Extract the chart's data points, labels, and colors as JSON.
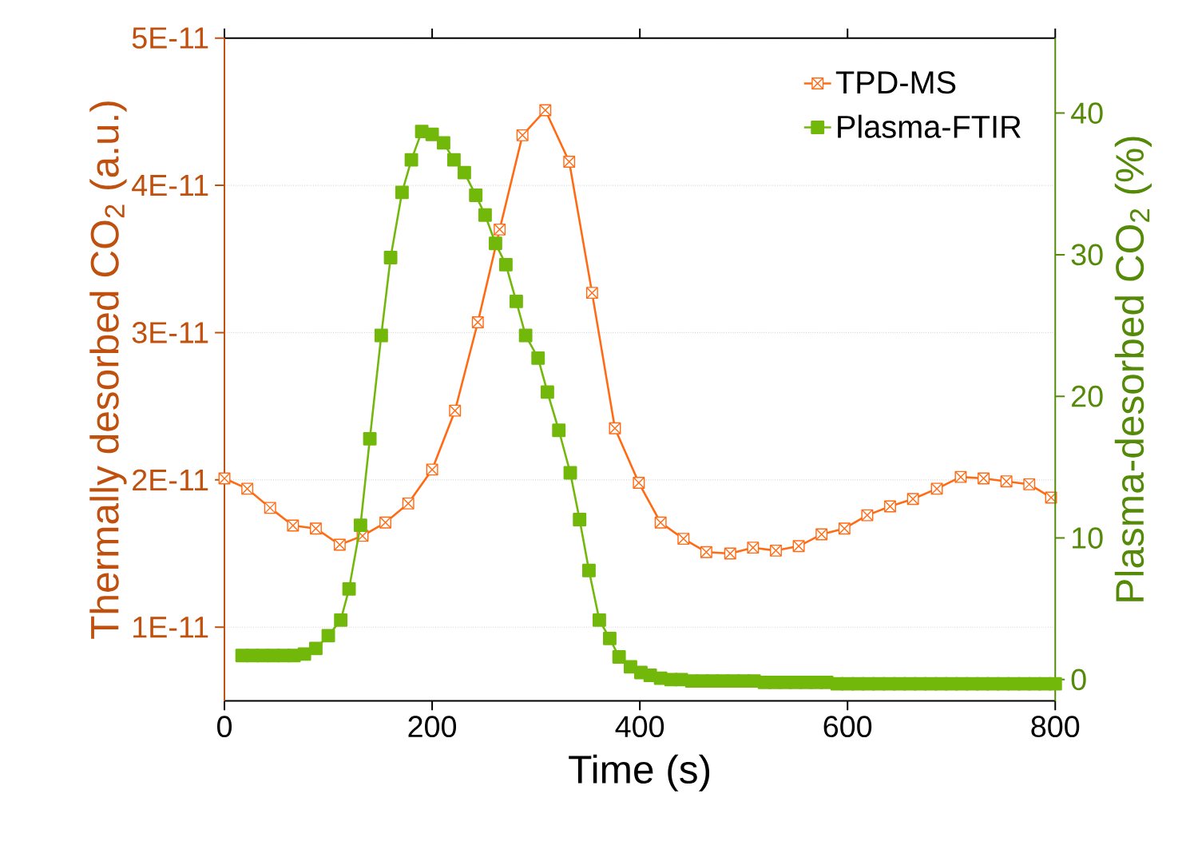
{
  "chart_data": {
    "type": "line",
    "xlabel": "Time (s)",
    "ylabel": "Thermally desorbed CO$_{2}$ (a.u.)",
    "y2label": "Plasma-desorbed CO$_{2}$ (%)",
    "xlim": [
      0,
      800
    ],
    "xticks": [
      0,
      200,
      400,
      600,
      800
    ],
    "ylim": [
      5e-12,
      5e-11
    ],
    "yticks": [
      {
        "value": 1e-11,
        "label": "1E-11"
      },
      {
        "value": 2e-11,
        "label": "2E-11"
      },
      {
        "value": 3e-11,
        "label": "3E-11"
      },
      {
        "value": 4e-11,
        "label": "4E-11"
      },
      {
        "value": 5e-11,
        "label": "5E-11"
      }
    ],
    "y2lim": [
      -1.5,
      45.3
    ],
    "y2ticks": [
      0,
      10,
      20,
      30,
      40
    ],
    "grid": "y",
    "legend": "top right",
    "line_style": "solid",
    "series": [
      {
        "name": "TPD-MS",
        "color": "#ff6a13",
        "marker": "square",
        "x": [
          0,
          22,
          44,
          66,
          88,
          111,
          133,
          155,
          177,
          200,
          222,
          244,
          265,
          287,
          309,
          332,
          354,
          376,
          399,
          420,
          442,
          464,
          487,
          509,
          531,
          553,
          575,
          597,
          619,
          641,
          663,
          686,
          709,
          731,
          753,
          775,
          796
        ],
        "values": [
          2.01e-11,
          1.94e-11,
          1.81e-11,
          1.69e-11,
          1.67e-11,
          1.56e-11,
          1.62e-11,
          1.71e-11,
          1.84e-11,
          2.07e-11,
          2.47e-11,
          3.07e-11,
          3.7e-11,
          4.34e-11,
          4.51e-11,
          4.16e-11,
          3.27e-11,
          2.35e-11,
          1.98e-11,
          1.71e-11,
          1.6e-11,
          1.51e-11,
          1.5e-11,
          1.54e-11,
          1.52e-11,
          1.55e-11,
          1.63e-11,
          1.67e-11,
          1.76e-11,
          1.82e-11,
          1.87e-11,
          1.94e-11,
          2.02e-11,
          2.01e-11,
          1.99e-11,
          1.97e-11,
          1.88e-11
        ]
      },
      {
        "name": "Plasma-FTIR",
        "color": "#72b80b",
        "marker": "square",
        "axis": "y2",
        "x": [
          17,
          27,
          37,
          47,
          57,
          67,
          77,
          88,
          100,
          112,
          120,
          131,
          140,
          151,
          160,
          171,
          180,
          190,
          200,
          211,
          221,
          231,
          242,
          251,
          261,
          271,
          281,
          290,
          302,
          311,
          322,
          333,
          342,
          351,
          361,
          371,
          380,
          391,
          401,
          410,
          420,
          430,
          440,
          450,
          460,
          470,
          480,
          490,
          500,
          510,
          520,
          530,
          540,
          550,
          560,
          570,
          580,
          590,
          600,
          610,
          620,
          630,
          640,
          650,
          660,
          670,
          680,
          690,
          700,
          710,
          720,
          730,
          740,
          750,
          760,
          770,
          780,
          790,
          800
        ],
        "values": [
          1.7,
          1.7,
          1.7,
          1.7,
          1.7,
          1.7,
          1.8,
          2.2,
          3.1,
          4.2,
          6.4,
          10.9,
          17.0,
          24.3,
          29.8,
          34.4,
          36.7,
          38.7,
          38.5,
          37.9,
          36.7,
          35.8,
          34.2,
          32.8,
          30.8,
          29.3,
          26.7,
          24.3,
          22.7,
          20.3,
          17.6,
          14.6,
          11.3,
          7.7,
          4.2,
          2.9,
          1.6,
          0.9,
          0.5,
          0.3,
          0.1,
          0.0,
          0.0,
          -0.1,
          -0.1,
          -0.1,
          -0.1,
          -0.1,
          -0.1,
          -0.1,
          -0.2,
          -0.2,
          -0.2,
          -0.2,
          -0.2,
          -0.2,
          -0.2,
          -0.3,
          -0.3,
          -0.3,
          -0.3,
          -0.3,
          -0.3,
          -0.3,
          -0.3,
          -0.3,
          -0.3,
          -0.3,
          -0.3,
          -0.3,
          -0.3,
          -0.3,
          -0.3,
          -0.3,
          -0.3,
          -0.3,
          -0.3,
          -0.3,
          -0.3
        ]
      }
    ]
  }
}
